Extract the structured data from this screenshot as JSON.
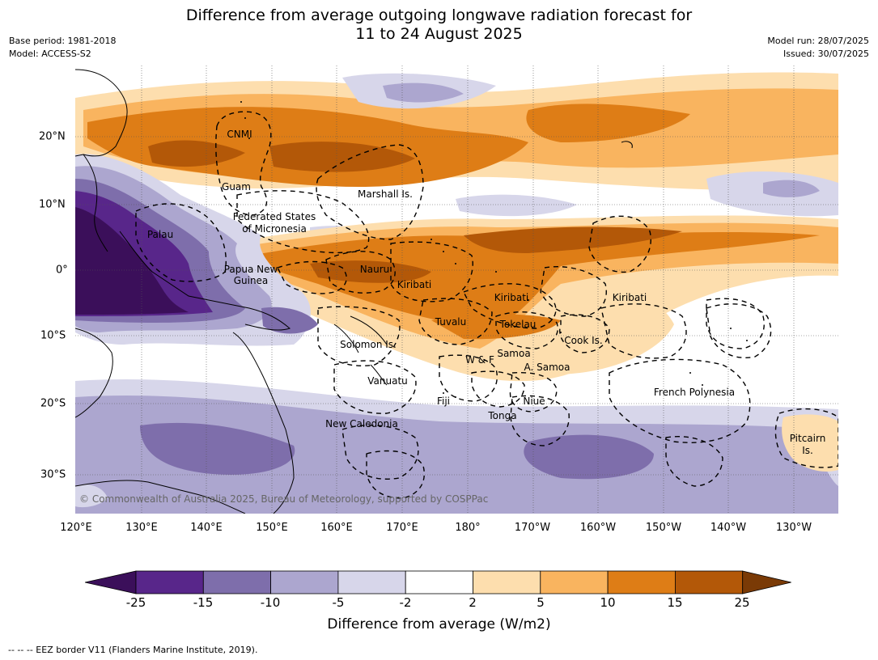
{
  "title_line1": "Difference from average outgoing longwave radiation forecast for",
  "title_line2": "11 to 24 August 2025",
  "base_period": "Base period: 1981-2018",
  "model": "Model: ACCESS-S2",
  "model_run": "Model run: 28/07/2025",
  "issued": "Issued: 30/07/2025",
  "lon_labels": [
    "120°E",
    "130°E",
    "140°E",
    "150°E",
    "160°E",
    "170°E",
    "180°",
    "170°W",
    "160°W",
    "150°W",
    "140°W",
    "130°W"
  ],
  "lat_labels": [
    "20°N",
    "10°N",
    "0°",
    "10°S",
    "20°S",
    "30°S"
  ],
  "places": {
    "cnmi": "CNMI",
    "guam": "Guam",
    "marshall": "Marshall Is.",
    "fsm_line1": "Federated States",
    "fsm_line2": "of Micronesia",
    "palau": "Palau",
    "png_line1": "Papua New",
    "png_line2": "Guinea",
    "nauru": "Nauru",
    "kiribati_w": "Kiribati",
    "kiribati_c": "Kiribati",
    "kiribati_e": "Kiribati",
    "tuvalu": "Tuvalu",
    "tokelau": "Tokelau",
    "cook": "Cook Is.",
    "solomon": "Solomon Is.",
    "wf": "W & F",
    "samoa": "Samoa",
    "asamoa": "A. Samoa",
    "vanuatu": "Vanuatu",
    "fiji": "Fiji",
    "niue": "Niue",
    "tonga": "Tonga",
    "frpoly": "French Polynesia",
    "pitcairn_line1": "Pitcairn",
    "pitcairn_line2": "Is.",
    "newcal": "New Caledonia"
  },
  "copyright": "© Commonwealth of Australia 2025, Bureau of Meteorology, supported by COSPPac",
  "colorbar": {
    "ticks": [
      "-25",
      "-15",
      "-10",
      "-5",
      "-2",
      "2",
      "5",
      "10",
      "15",
      "25"
    ],
    "colors": [
      "#3b0f5a",
      "#58268a",
      "#7e6eab",
      "#aca6cf",
      "#d7d6ea",
      "#ffffff",
      "#fddeae",
      "#f9b45f",
      "#de7d16",
      "#b35808",
      "#7a3a06"
    ],
    "label": "Difference from average (W/m2)"
  },
  "footnote": "--  --  -- EEZ border V11 (Flanders Marine Institute, 2019)."
}
